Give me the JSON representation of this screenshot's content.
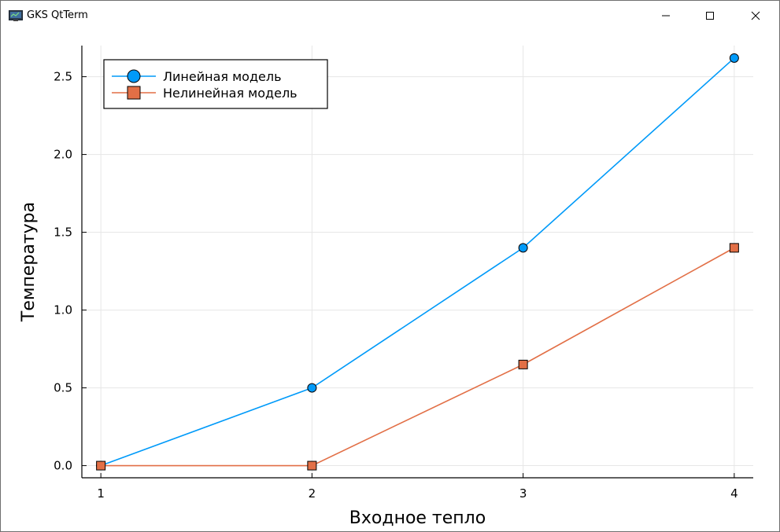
{
  "window": {
    "title": "GKS QtTerm",
    "icons": {
      "app": "terminal-app-icon",
      "minimize": "minimize-icon",
      "maximize": "maximize-icon",
      "close": "close-icon"
    }
  },
  "chart_data": {
    "type": "line",
    "title": "",
    "xlabel": "Входное тепло",
    "ylabel": "Температура",
    "x": [
      1,
      2,
      3,
      4
    ],
    "xticks": [
      "1",
      "2",
      "3",
      "4"
    ],
    "yticks": [
      "0.0",
      "0.5",
      "1.0",
      "1.5",
      "2.0",
      "2.5"
    ],
    "xlim": [
      0.91,
      4.09
    ],
    "ylim": [
      -0.078,
      2.7
    ],
    "grid": true,
    "legend_position": "top-left",
    "series": [
      {
        "name": "Линейная модель",
        "values": [
          0.0,
          0.5,
          1.4,
          2.62
        ],
        "color": "#009af9",
        "marker": "circle"
      },
      {
        "name": "Нелинейная модель",
        "values": [
          0.0,
          0.0,
          0.65,
          1.4
        ],
        "color": "#e26f46",
        "marker": "square"
      }
    ]
  }
}
